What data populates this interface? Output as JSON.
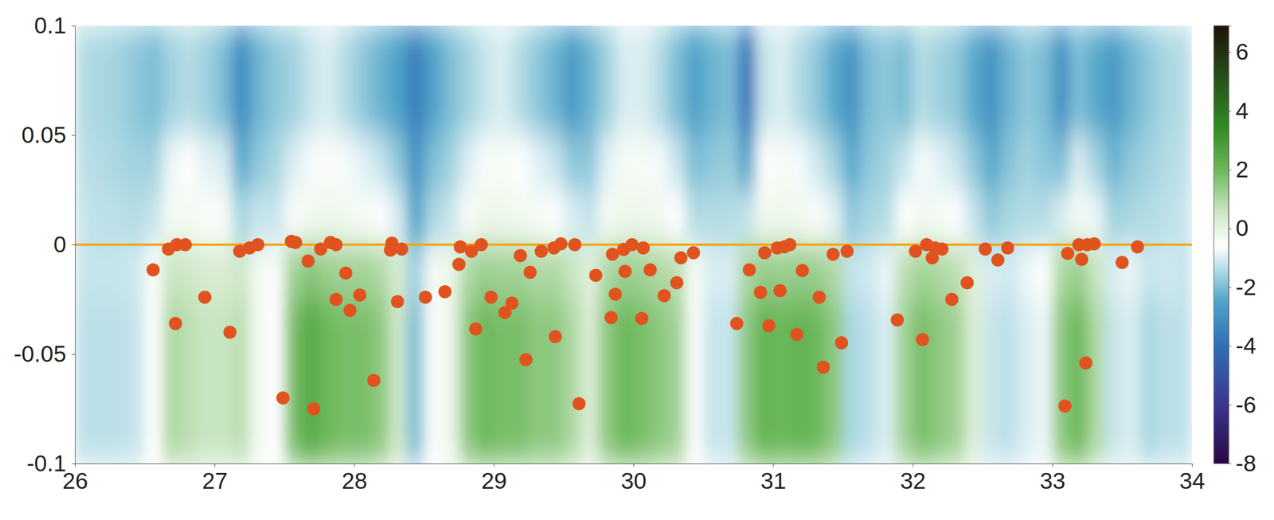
{
  "chart_data": {
    "type": "scatter",
    "x": [
      26.56,
      26.67,
      26.73,
      26.79,
      26.72,
      26.93,
      27.11,
      27.18,
      27.25,
      27.31,
      27.49,
      27.55,
      27.58,
      27.67,
      27.71,
      27.76,
      27.83,
      27.87,
      27.87,
      27.94,
      27.97,
      28.04,
      28.14,
      28.26,
      28.27,
      28.31,
      28.34,
      28.51,
      28.65,
      28.75,
      28.76,
      28.84,
      28.87,
      28.91,
      28.98,
      29.08,
      29.13,
      29.19,
      29.23,
      29.26,
      29.34,
      29.43,
      29.44,
      29.48,
      29.58,
      29.61,
      29.73,
      29.84,
      29.85,
      29.87,
      29.93,
      29.94,
      29.99,
      30.06,
      30.07,
      30.12,
      30.22,
      30.31,
      30.34,
      30.43,
      30.74,
      30.83,
      30.91,
      30.94,
      30.97,
      31.03,
      31.05,
      31.08,
      31.12,
      31.17,
      31.21,
      31.33,
      31.36,
      31.43,
      31.49,
      31.53,
      31.89,
      32.02,
      32.07,
      32.1,
      32.14,
      32.16,
      32.21,
      32.28,
      32.39,
      32.52,
      32.61,
      32.68,
      33.09,
      33.11,
      33.19,
      33.21,
      33.24,
      33.25,
      33.3,
      33.5,
      33.61
    ],
    "values": [
      -0.0115,
      -0.002,
      0,
      0,
      -0.036,
      -0.024,
      -0.04,
      -0.003,
      -0.0015,
      0,
      -0.07,
      0.0015,
      0.001,
      -0.0075,
      -0.075,
      -0.002,
      0.001,
      0,
      -0.025,
      -0.013,
      -0.03,
      -0.023,
      -0.062,
      -0.0025,
      0.0007,
      -0.026,
      -0.002,
      -0.024,
      -0.0215,
      -0.009,
      -0.001,
      -0.003,
      -0.0385,
      0,
      -0.024,
      -0.031,
      -0.0267,
      -0.005,
      -0.0525,
      -0.0126,
      -0.003,
      -0.0015,
      -0.042,
      0.0004,
      0,
      -0.0726,
      -0.014,
      -0.0333,
      -0.0044,
      -0.0226,
      -0.0022,
      -0.0122,
      0,
      -0.0337,
      -0.0015,
      -0.0115,
      -0.0233,
      -0.0174,
      -0.006,
      -0.0037,
      -0.036,
      -0.0115,
      -0.0218,
      -0.0037,
      -0.037,
      -0.0015,
      -0.021,
      -0.001,
      0,
      -0.041,
      -0.0118,
      -0.024,
      -0.056,
      -0.0044,
      -0.0448,
      -0.003,
      -0.0344,
      -0.003,
      -0.0433,
      0,
      -0.006,
      -0.0015,
      -0.002,
      -0.025,
      -0.0174,
      -0.002,
      -0.007,
      -0.0015,
      -0.0737,
      -0.004,
      0,
      -0.0067,
      -0.054,
      0,
      0.0004,
      -0.0081,
      -0.001
    ],
    "color": "#e0531f",
    "marker": "circle",
    "xlim": [
      26,
      34
    ],
    "xticks": [
      26,
      27,
      28,
      29,
      30,
      31,
      32,
      33,
      34
    ],
    "ylim": [
      -0.1,
      0.1
    ],
    "yticks": [
      -0.1,
      -0.05,
      0,
      0.05,
      0.1
    ],
    "hline": {
      "y": 0,
      "color": "#f2a81d"
    },
    "heatmap": {
      "z": [
        [
          -1.4,
          -1.5,
          -1.6,
          -1.8,
          -2.0,
          -1.6,
          -1.4,
          -1.6,
          -2.0,
          -3.2,
          -2.2,
          -1.8,
          -1.6,
          -1.2,
          -1.0,
          -1.4,
          -1.8,
          -2.2,
          -2.6,
          -3.5,
          -2.6,
          -2.0,
          -1.6,
          -1.2,
          -1.0,
          -1.4,
          -1.8,
          -2.2,
          -2.8,
          -2.2,
          -1.6,
          -1.0,
          -1.0,
          -1.4,
          -2.0,
          -2.6,
          -2.2,
          -2.0,
          -3.8,
          -1.2,
          -1.0,
          -1.4,
          -1.8,
          -2.4,
          -3.0,
          -2.0,
          -1.8,
          -2.0,
          -1.4,
          -1.6,
          -1.8,
          -2.4,
          -3.0,
          -2.2,
          -1.8,
          -2.0,
          -3.0,
          -2.0,
          -2.4,
          -2.8,
          -2.2,
          -1.8,
          -1.5,
          -1.4
        ],
        [
          -1.4,
          -1.5,
          -1.6,
          -1.8,
          -2.0,
          -1.6,
          -1.4,
          -1.6,
          -2.0,
          -3.2,
          -2.2,
          -1.8,
          -1.6,
          -1.2,
          -1.0,
          -1.4,
          -1.8,
          -2.2,
          -2.6,
          -3.5,
          -2.6,
          -2.0,
          -1.6,
          -1.2,
          -1.0,
          -1.4,
          -1.8,
          -2.2,
          -2.8,
          -2.2,
          -1.6,
          -1.0,
          -1.0,
          -1.4,
          -2.0,
          -2.6,
          -2.2,
          -2.0,
          -3.8,
          -1.2,
          -1.0,
          -1.4,
          -1.8,
          -2.4,
          -3.0,
          -2.0,
          -1.8,
          -2.0,
          -1.4,
          -1.6,
          -1.8,
          -2.4,
          -3.0,
          -2.2,
          -1.8,
          -2.0,
          -3.0,
          -2.0,
          -2.4,
          -2.8,
          -2.2,
          -1.8,
          -1.5,
          -1.4
        ],
        [
          -1.3,
          -1.4,
          -1.5,
          -1.6,
          -1.6,
          -0.8,
          -0.6,
          -0.9,
          -1.0,
          -2.4,
          -1.8,
          -1.5,
          -1.0,
          -0.7,
          -0.5,
          -0.7,
          -0.9,
          -1.2,
          -1.8,
          -3.0,
          -2.0,
          -1.6,
          -1.0,
          -0.5,
          -0.4,
          -0.6,
          -0.9,
          -1.2,
          -1.8,
          -1.8,
          -0.9,
          -0.4,
          -0.4,
          -0.7,
          -1.2,
          -2.0,
          -1.8,
          -1.7,
          -2.5,
          -0.6,
          -0.4,
          -0.7,
          -1.1,
          -1.6,
          -2.4,
          -1.8,
          -1.6,
          -1.2,
          -0.7,
          -0.9,
          -1.2,
          -1.8,
          -2.4,
          -1.9,
          -1.6,
          -1.8,
          -2.0,
          -1.0,
          -1.6,
          -2.2,
          -1.8,
          -1.6,
          -1.4,
          -1.3
        ],
        [
          -1.2,
          -1.3,
          -1.3,
          -1.4,
          -1.2,
          -0.4,
          -0.3,
          -0.5,
          -0.5,
          -1.5,
          -1.2,
          -1.2,
          -0.5,
          -0.3,
          -0.2,
          -0.3,
          -0.4,
          -0.6,
          -1.0,
          -2.5,
          -1.5,
          -1.2,
          -0.5,
          -0.2,
          -0.2,
          -0.3,
          -0.4,
          -0.6,
          -1.0,
          -1.2,
          -0.4,
          -0.2,
          -0.2,
          -0.3,
          -0.6,
          -1.4,
          -1.4,
          -1.4,
          -1.2,
          -0.3,
          -0.2,
          -0.3,
          -0.5,
          -0.9,
          -1.8,
          -1.5,
          -1.4,
          -0.6,
          -0.3,
          -0.4,
          -0.6,
          -1.2,
          -1.8,
          -1.5,
          -1.4,
          -1.4,
          -1.0,
          -0.4,
          -0.8,
          -1.6,
          -1.5,
          -1.4,
          -1.3,
          -1.2
        ],
        [
          -1.2,
          -1.2,
          -1.2,
          -1.1,
          -0.5,
          0.6,
          0.5,
          0.3,
          0.3,
          0.5,
          -0.3,
          -0.5,
          1.2,
          1.6,
          1.3,
          1.2,
          1.2,
          1.0,
          0.3,
          -1.6,
          -0.4,
          -0.2,
          1.0,
          1.3,
          1.2,
          1.2,
          1.0,
          1.0,
          0.6,
          0.1,
          1.0,
          1.3,
          1.2,
          1.0,
          0.8,
          -0.4,
          -1.0,
          -1.0,
          1.0,
          1.4,
          1.3,
          1.4,
          1.3,
          1.0,
          -1.2,
          -1.1,
          -0.8,
          0.8,
          1.2,
          1.0,
          0.8,
          0.1,
          -1.0,
          -1.1,
          -0.8,
          -0.6,
          1.0,
          1.3,
          0.6,
          -1.0,
          -0.8,
          -1.2,
          -1.1,
          -1.2
        ],
        [
          -1.3,
          -1.3,
          -1.3,
          -1.2,
          -0.6,
          1.0,
          0.8,
          0.6,
          0.6,
          0.8,
          -0.3,
          -0.6,
          1.8,
          2.5,
          2.0,
          1.8,
          1.8,
          1.5,
          0.5,
          -2.0,
          -0.5,
          -0.2,
          1.5,
          2.0,
          1.8,
          1.8,
          1.5,
          1.5,
          1.0,
          0.2,
          1.5,
          2.0,
          1.8,
          1.5,
          1.2,
          -0.5,
          -1.2,
          -1.2,
          1.5,
          2.2,
          2.0,
          2.2,
          2.0,
          1.5,
          -1.5,
          -1.3,
          -1.0,
          1.2,
          1.8,
          1.5,
          1.2,
          0.2,
          -1.2,
          -1.3,
          -1.0,
          -0.8,
          1.5,
          2.0,
          1.0,
          -1.2,
          -1.0,
          -1.5,
          -1.3,
          -1.3
        ],
        [
          -1.3,
          -1.3,
          -1.3,
          -1.2,
          -0.6,
          1.0,
          0.8,
          0.6,
          0.6,
          0.8,
          -0.3,
          -0.6,
          1.8,
          2.5,
          2.0,
          1.8,
          1.8,
          1.5,
          0.5,
          -2.0,
          -0.5,
          -0.2,
          1.5,
          2.0,
          1.8,
          1.8,
          1.5,
          1.5,
          1.0,
          0.2,
          1.5,
          2.0,
          1.8,
          1.5,
          1.2,
          -0.5,
          -1.2,
          -1.2,
          1.5,
          2.2,
          2.0,
          2.2,
          2.0,
          1.5,
          -1.5,
          -1.3,
          -1.0,
          1.2,
          1.8,
          1.5,
          1.2,
          0.2,
          -1.2,
          -1.3,
          -1.0,
          -0.8,
          1.5,
          2.0,
          1.0,
          -1.2,
          -1.0,
          -1.5,
          -1.3,
          -1.3
        ],
        [
          -1.3,
          -1.3,
          -1.3,
          -1.2,
          -0.6,
          1.0,
          0.8,
          0.6,
          0.6,
          0.8,
          -0.3,
          -0.6,
          1.8,
          2.5,
          2.0,
          1.8,
          1.8,
          1.5,
          0.5,
          -2.0,
          -0.5,
          -0.2,
          1.5,
          2.0,
          1.8,
          1.8,
          1.5,
          1.5,
          1.0,
          0.2,
          1.5,
          2.0,
          1.8,
          1.5,
          1.2,
          -0.5,
          -1.2,
          -1.2,
          1.5,
          2.2,
          2.0,
          2.2,
          2.0,
          1.5,
          -1.5,
          -1.3,
          -1.0,
          1.2,
          1.8,
          1.5,
          1.2,
          0.2,
          -1.2,
          -1.3,
          -1.0,
          -0.8,
          1.5,
          2.0,
          1.0,
          -1.2,
          -1.0,
          -1.5,
          -1.3,
          -1.3
        ]
      ]
    },
    "colorbar": {
      "range": [
        -8,
        6.9
      ],
      "ticks": [
        -8,
        -6,
        -4,
        -2,
        0,
        2,
        4,
        6
      ]
    }
  }
}
